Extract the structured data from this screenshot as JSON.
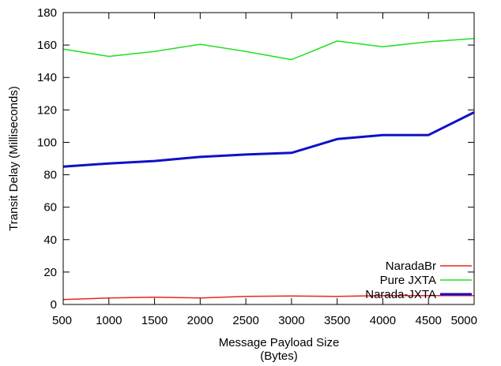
{
  "chart_data": {
    "type": "line",
    "title": "",
    "xlabel": "Message Payload Size",
    "xlabel_line2": "(Bytes)",
    "ylabel": "Transit Delay  (Milliseconds)",
    "xlim": [
      500,
      5000
    ],
    "ylim": [
      0,
      180
    ],
    "x_ticks": [
      "500",
      "1000",
      "1500",
      "2000",
      "2500",
      "3000",
      "3500",
      "4000",
      "4500",
      "5000"
    ],
    "y_ticks": [
      "0",
      "20",
      "40",
      "60",
      "80",
      "100",
      "120",
      "140",
      "160",
      "180"
    ],
    "grid": false,
    "legend_position": "bottom-right",
    "x": [
      500,
      1000,
      1500,
      2000,
      2500,
      3000,
      3500,
      4000,
      4500,
      5000
    ],
    "series": [
      {
        "name": "NaradaBr",
        "color": "#e8261f",
        "values": [
          3,
          4,
          4.5,
          4,
          5,
          5.2,
          5,
          5.5,
          5.5,
          5.5
        ]
      },
      {
        "name": "Pure JXTA",
        "color": "#20e020",
        "values": [
          157.5,
          153,
          156,
          160.5,
          156,
          151,
          162.5,
          159,
          162,
          164
        ]
      },
      {
        "name": "Narada-JXTA",
        "color": "#1010c8",
        "values": [
          85,
          87,
          88.5,
          91,
          92.5,
          93.5,
          102,
          104.5,
          104.5,
          118.5
        ]
      }
    ]
  }
}
